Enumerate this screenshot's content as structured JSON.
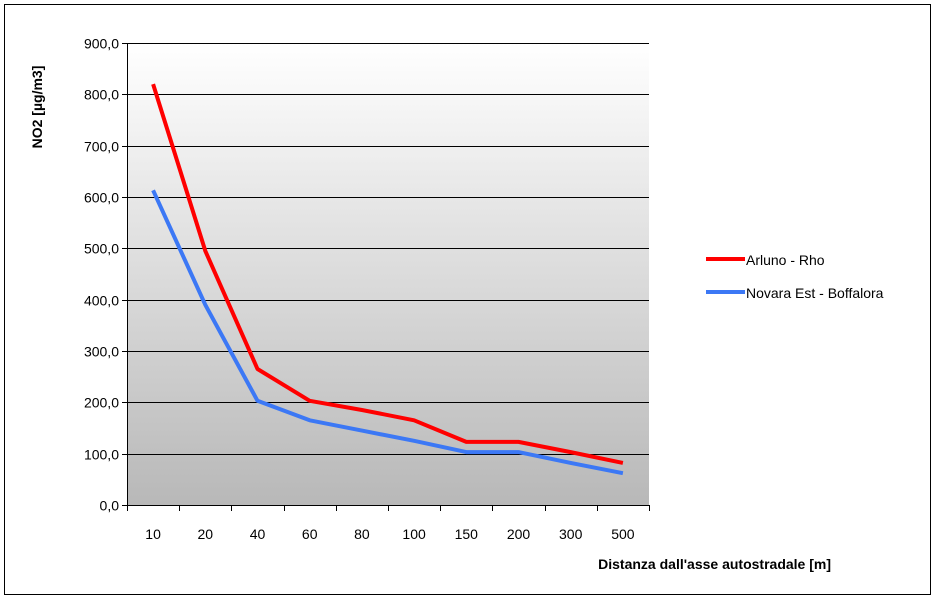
{
  "chart_data": {
    "type": "line",
    "title": "",
    "xlabel": "Distanza dall'asse autostradale [m]",
    "ylabel": "NO2 [µg/m3]",
    "categories": [
      "10",
      "20",
      "40",
      "60",
      "80",
      "100",
      "150",
      "200",
      "300",
      "500"
    ],
    "y_tick_labels": [
      "0,0",
      "100,0",
      "200,0",
      "300,0",
      "400,0",
      "500,0",
      "600,0",
      "700,0",
      "800,0",
      "900,0"
    ],
    "ylim": [
      0,
      900
    ],
    "y_tick_step": 100,
    "grid": "horizontal",
    "legend_position": "right",
    "background": "gradient white-to-grey",
    "series": [
      {
        "name": "Arluno - Rho",
        "color": "#ff0000",
        "values": [
          820,
          495,
          265,
          203,
          185,
          165,
          123,
          123,
          103,
          82
        ]
      },
      {
        "name": "Novara Est - Boffalora",
        "color": "#3c78f5",
        "values": [
          613,
          390,
          203,
          165,
          145,
          125,
          103,
          103,
          82,
          62
        ]
      }
    ]
  }
}
